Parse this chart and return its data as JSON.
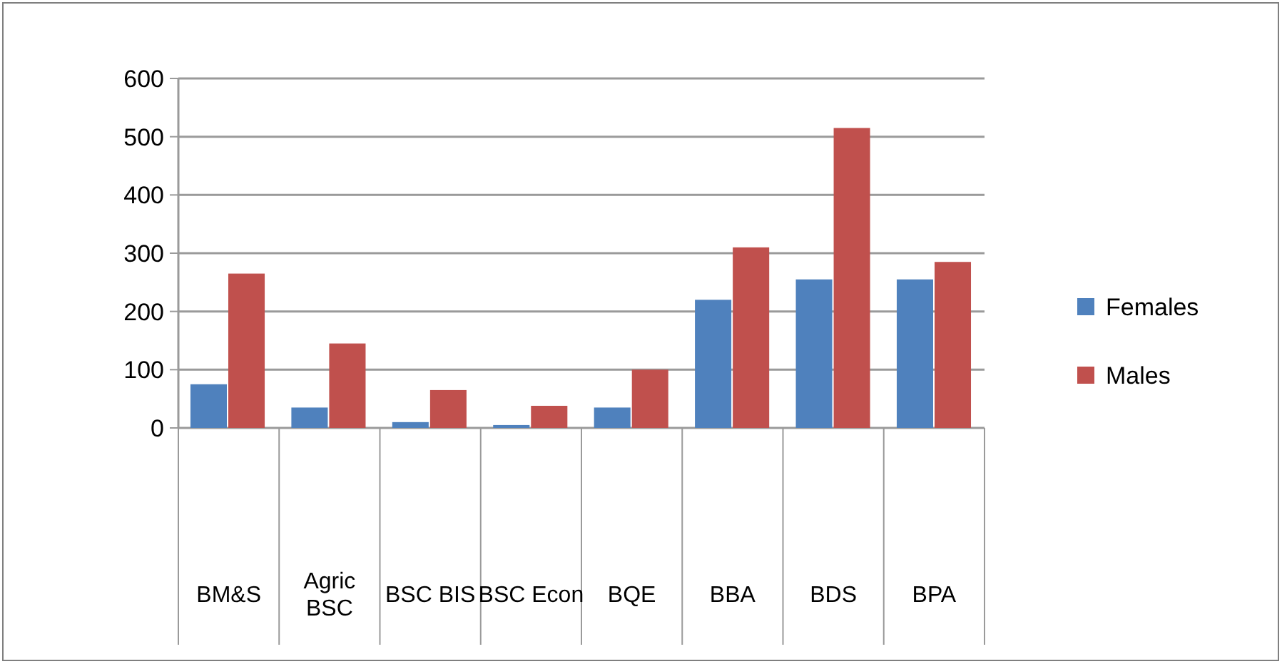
{
  "chart_data": {
    "type": "bar",
    "categories": [
      "BM&S",
      "Agric\nBSC",
      "BSC BIS",
      "BSC Econ",
      "BQE",
      "BBA",
      "BDS",
      "BPA"
    ],
    "series": [
      {
        "name": "Females",
        "color": "#4f81bd",
        "values": [
          75,
          35,
          10,
          5,
          35,
          220,
          255,
          255
        ]
      },
      {
        "name": "Males",
        "color": "#c0504d",
        "values": [
          265,
          145,
          65,
          38,
          100,
          310,
          515,
          285
        ]
      }
    ],
    "ylim": [
      0,
      600
    ],
    "yticks": [
      0,
      100,
      200,
      300,
      400,
      500,
      600
    ],
    "grid": "y",
    "legend": "right"
  }
}
